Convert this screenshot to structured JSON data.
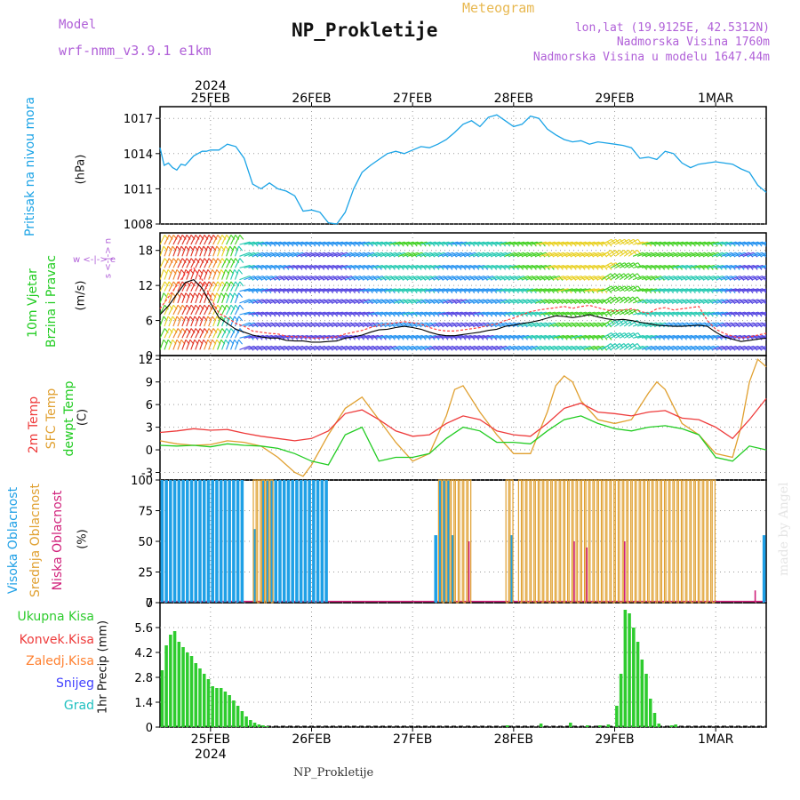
{
  "header": {
    "model_label": "Model",
    "model_name": "wrf-nmm_v3.9.1  e1km",
    "title": "NP_Prokletije",
    "meteogram": "Meteogram",
    "lonlat": "lon,lat (19.9125E, 42.5312N)",
    "elevation": "Nadmorska Visina 1760m",
    "model_elevation": "Nadmorska Visina u modelu 1647.44m"
  },
  "footer": {
    "station": "NP_Prokletije",
    "credit": "made by Angel"
  },
  "time_axis": {
    "year": "2024",
    "labels": [
      "25FEB",
      "26FEB",
      "27FEB",
      "28FEB",
      "29FEB",
      "1MAR"
    ],
    "label_hours": [
      12,
      36,
      60,
      84,
      108,
      132
    ],
    "hour_range": [
      0,
      144
    ]
  },
  "colors": {
    "pressure": "#1aa3e6",
    "wind": "#00b050",
    "wind_speed": "#000000",
    "wind_gust": "#ff4040",
    "t2m": "#ee3b3b",
    "sfc": "#e0a030",
    "dew": "#22cc22",
    "high_cloud": "#1fa0e6",
    "mid_cloud": "#e0a030",
    "low_cloud": "#d0207a",
    "total_precip": "#2ecc2e",
    "conv_precip": "#ee3b3b",
    "frz_precip": "#ff8030",
    "snow": "#4040ff",
    "hail": "#20c0c0"
  },
  "chart_data": [
    {
      "type": "line",
      "id": "pressure",
      "ylabel_main": "Pritisak na nivou mora",
      "ylabel_unit": "(hPa)",
      "yticks": [
        1008,
        1011,
        1014,
        1017
      ],
      "ylim": [
        1008,
        1018
      ],
      "grid": true,
      "series": [
        {
          "x": [
            0,
            1,
            2,
            3,
            4,
            5,
            6,
            7,
            8,
            9,
            10,
            11,
            12,
            14,
            16,
            18,
            20,
            22,
            24,
            26,
            28,
            30,
            32,
            34,
            36,
            38,
            40,
            42,
            44,
            46,
            48,
            50,
            52,
            54,
            56,
            58,
            60,
            62,
            64,
            66,
            68,
            70,
            72,
            74,
            76,
            78,
            80,
            82,
            84,
            86,
            88,
            90,
            92,
            94,
            96,
            98,
            100,
            102,
            104,
            106,
            108,
            110,
            112,
            114,
            116,
            118,
            120,
            122,
            124,
            126,
            128,
            130,
            132,
            134,
            136,
            138,
            140,
            142,
            144
          ],
          "y": [
            1014.5,
            1013.0,
            1013.2,
            1012.8,
            1012.6,
            1013.1,
            1013.0,
            1013.4,
            1013.8,
            1014.0,
            1014.2,
            1014.2,
            1014.3,
            1014.3,
            1014.8,
            1014.6,
            1013.6,
            1011.4,
            1011.0,
            1011.5,
            1011.0,
            1010.8,
            1010.4,
            1009.1,
            1009.2,
            1009.0,
            1008.1,
            1008.0,
            1009.0,
            1011.0,
            1012.4,
            1013.0,
            1013.5,
            1014.0,
            1014.2,
            1014.0,
            1014.3,
            1014.6,
            1014.5,
            1014.8,
            1015.2,
            1015.8,
            1016.5,
            1016.8,
            1016.3,
            1017.1,
            1017.3,
            1016.8,
            1016.3,
            1016.5,
            1017.2,
            1017.0,
            1016.1,
            1015.6,
            1015.2,
            1015.0,
            1015.1,
            1014.8,
            1015.0,
            1014.9,
            1014.8,
            1014.7,
            1014.5,
            1013.6,
            1013.7,
            1013.5,
            1014.2,
            1014.0,
            1013.2,
            1012.8,
            1013.1,
            1013.2,
            1013.3,
            1013.2,
            1013.1,
            1012.7,
            1012.4,
            1011.3,
            1010.7
          ]
        }
      ]
    },
    {
      "type": "line",
      "id": "wind",
      "ylabel_main": "10m Vjetar",
      "ylabel_sub": "Brzina i Pravac",
      "ylabel_unit": "(m/s)",
      "compass": "w  <-|->  e",
      "compass_v": "s <-|-> n",
      "yticks": [
        0,
        6,
        12,
        18
      ],
      "ylim": [
        0,
        21
      ],
      "grid": true,
      "series": [
        {
          "name": "speed",
          "x": [
            0,
            2,
            4,
            6,
            8,
            10,
            12,
            14,
            16,
            18,
            20,
            22,
            24,
            26,
            28,
            30,
            32,
            34,
            36,
            38,
            40,
            42,
            44,
            46,
            48,
            50,
            52,
            54,
            56,
            58,
            60,
            62,
            64,
            66,
            68,
            70,
            72,
            74,
            76,
            78,
            80,
            82,
            84,
            86,
            88,
            90,
            92,
            94,
            96,
            98,
            100,
            102,
            104,
            106,
            108,
            110,
            112,
            114,
            116,
            118,
            120,
            122,
            124,
            126,
            128,
            130,
            132,
            134,
            136,
            138,
            140,
            142,
            144
          ],
          "y": [
            7,
            8.5,
            10.5,
            12.5,
            13.0,
            11.5,
            9,
            6.5,
            5.5,
            4.5,
            4.0,
            3.5,
            3.2,
            3.0,
            3.0,
            2.6,
            2.5,
            2.5,
            2.3,
            2.3,
            2.4,
            2.5,
            3.0,
            3.2,
            3.5,
            4.0,
            4.4,
            4.5,
            4.8,
            5.0,
            4.8,
            4.5,
            4.0,
            3.6,
            3.4,
            3.4,
            3.6,
            3.8,
            4.0,
            4.3,
            4.5,
            5.0,
            5.2,
            5.5,
            5.7,
            6.0,
            6.4,
            6.8,
            6.7,
            6.5,
            6.7,
            7.0,
            6.6,
            6.3,
            6.1,
            6.2,
            6.0,
            5.7,
            5.5,
            5.2,
            5.1,
            5.0,
            5.0,
            5.1,
            5.2,
            5.0,
            4.0,
            3.2,
            2.8,
            2.4,
            2.6,
            2.8,
            3.0
          ]
        },
        {
          "name": "gust",
          "x": [
            0,
            2,
            4,
            6,
            8,
            10,
            12,
            14,
            16,
            18,
            20,
            22,
            24,
            26,
            28,
            30,
            32,
            34,
            36,
            38,
            40,
            42,
            44,
            46,
            48,
            50,
            52,
            54,
            56,
            58,
            60,
            62,
            64,
            66,
            68,
            70,
            72,
            74,
            76,
            78,
            80,
            82,
            84,
            86,
            88,
            90,
            92,
            94,
            96,
            98,
            100,
            102,
            104,
            106,
            108,
            110,
            112,
            114,
            116,
            118,
            120,
            122,
            124,
            126,
            128,
            130,
            132,
            134,
            136,
            138,
            140,
            142,
            144
          ],
          "y": [
            8,
            10,
            12,
            14,
            15,
            13,
            10,
            7.2,
            6.5,
            5.5,
            5.0,
            4.2,
            4.0,
            3.8,
            3.7,
            3.3,
            3.2,
            3.2,
            3.0,
            3.0,
            3.1,
            3.2,
            3.7,
            4.0,
            4.3,
            4.8,
            5.2,
            5.4,
            5.6,
            5.8,
            5.6,
            5.4,
            4.8,
            4.4,
            4.2,
            4.2,
            4.4,
            4.6,
            4.8,
            5.2,
            5.4,
            6.0,
            6.4,
            7.0,
            7.5,
            7.8,
            8.0,
            8.2,
            8.4,
            8.1,
            8.4,
            8.6,
            8.2,
            7.8,
            7.6,
            7.8,
            8.0,
            7.6,
            7.2,
            8.0,
            8.2,
            7.8,
            8.0,
            8.2,
            8.4,
            6.0,
            4.5,
            3.8,
            3.3,
            3.0,
            3.2,
            3.5,
            3.8
          ]
        }
      ]
    },
    {
      "type": "line",
      "id": "temperature",
      "ylabel_t2m": "2m Temp",
      "ylabel_sfc": "SFC Temp",
      "ylabel_dew": "dewpt Temp",
      "ylabel_unit": "(C)",
      "yticks": [
        -3,
        0,
        3,
        6,
        9,
        12
      ],
      "ylim": [
        -4,
        12.5
      ],
      "grid": true,
      "series": [
        {
          "name": "t2m",
          "x": [
            0,
            4,
            8,
            12,
            16,
            20,
            24,
            28,
            32,
            36,
            40,
            44,
            48,
            52,
            56,
            60,
            64,
            68,
            72,
            76,
            80,
            84,
            88,
            92,
            96,
            100,
            104,
            108,
            112,
            116,
            120,
            124,
            128,
            132,
            136,
            140,
            144
          ],
          "y": [
            2.3,
            2.5,
            2.8,
            2.6,
            2.7,
            2.2,
            1.8,
            1.5,
            1.2,
            1.5,
            2.5,
            4.8,
            5.3,
            4.0,
            2.5,
            1.8,
            2.0,
            3.5,
            4.5,
            4.0,
            2.5,
            2.0,
            1.8,
            3.5,
            5.5,
            6.2,
            5.0,
            4.8,
            4.5,
            5.0,
            5.2,
            4.2,
            4.0,
            3.0,
            1.5,
            4.0,
            6.8
          ]
        },
        {
          "name": "sfc",
          "x": [
            0,
            4,
            8,
            12,
            16,
            20,
            24,
            28,
            32,
            34,
            36,
            40,
            44,
            48,
            52,
            56,
            60,
            64,
            68,
            70,
            72,
            76,
            80,
            84,
            88,
            92,
            94,
            96,
            98,
            100,
            104,
            108,
            112,
            116,
            118,
            120,
            124,
            128,
            132,
            136,
            138,
            140,
            142,
            144
          ],
          "y": [
            1.2,
            0.8,
            0.6,
            0.7,
            1.2,
            1.0,
            0.5,
            -1.0,
            -3.0,
            -3.5,
            -2.0,
            2.0,
            5.5,
            7.0,
            4.0,
            1.0,
            -1.5,
            -0.5,
            4.5,
            8.0,
            8.5,
            5.0,
            2.0,
            -0.5,
            -0.5,
            5.0,
            8.5,
            9.8,
            9.0,
            6.5,
            4.0,
            3.5,
            4.0,
            7.5,
            9.0,
            8.0,
            3.5,
            2.0,
            -0.5,
            -1.0,
            3.0,
            9.0,
            12.0,
            11.0
          ]
        },
        {
          "name": "dew",
          "x": [
            0,
            4,
            8,
            12,
            16,
            20,
            24,
            28,
            32,
            36,
            40,
            44,
            48,
            52,
            56,
            60,
            64,
            68,
            72,
            76,
            80,
            84,
            88,
            92,
            96,
            100,
            104,
            108,
            112,
            116,
            120,
            124,
            128,
            132,
            136,
            140,
            144
          ],
          "y": [
            0.6,
            0.5,
            0.6,
            0.4,
            0.8,
            0.6,
            0.5,
            0.2,
            -0.5,
            -1.5,
            -2.0,
            2.0,
            3.0,
            -1.5,
            -1.0,
            -1.0,
            -0.5,
            1.5,
            3.0,
            2.5,
            1.0,
            1.0,
            0.8,
            2.5,
            4.0,
            4.5,
            3.5,
            2.8,
            2.5,
            3.0,
            3.2,
            2.8,
            2.0,
            -1.0,
            -1.5,
            0.5,
            0.0
          ]
        }
      ]
    },
    {
      "type": "bar",
      "id": "clouds",
      "ylabel_high": "Visoka Oblacnost",
      "ylabel_mid": "Srednja Oblacnost",
      "ylabel_low": "Niska Oblacnost",
      "ylabel_unit": "(%)",
      "yticks": [
        0,
        25,
        50,
        75,
        100
      ],
      "ylim": [
        0,
        100
      ],
      "grid": true,
      "high_segments": [
        [
          0,
          2,
          100
        ],
        [
          2,
          20,
          100
        ],
        [
          22,
          23,
          60
        ],
        [
          24,
          40,
          100
        ],
        [
          65,
          66,
          55
        ],
        [
          66,
          69,
          100
        ],
        [
          69,
          70,
          55
        ],
        [
          83,
          84,
          55
        ],
        [
          143,
          144,
          55
        ]
      ],
      "mid_segments": [
        [
          22,
          27,
          100
        ],
        [
          66,
          74,
          100
        ],
        [
          82,
          84,
          100
        ],
        [
          85,
          132,
          100
        ]
      ],
      "low_segments": [
        [
          73,
          74,
          50
        ],
        [
          98,
          99,
          50
        ],
        [
          101,
          102,
          45
        ],
        [
          110,
          111,
          50
        ],
        [
          141,
          142,
          10
        ]
      ]
    },
    {
      "type": "bar",
      "id": "precip",
      "ylabel_unit": "1hr Precip (mm)",
      "legend": [
        "Ukupna Kisa",
        "Konvek.Kisa",
        "Zaledj.Kisa",
        "Snijeg",
        "Grad"
      ],
      "yticks": [
        0,
        1.4,
        2.8,
        4.2,
        5.6,
        7
      ],
      "ylim": [
        0,
        7
      ],
      "grid": true,
      "x": [
        0,
        1,
        2,
        3,
        4,
        5,
        6,
        7,
        8,
        9,
        10,
        11,
        12,
        13,
        14,
        15,
        16,
        17,
        18,
        19,
        20,
        21,
        22,
        23,
        24,
        25,
        82,
        90,
        97,
        101,
        104,
        106,
        108,
        109,
        110,
        111,
        112,
        113,
        114,
        115,
        116,
        117,
        118,
        121,
        122
      ],
      "y": [
        3.2,
        4.6,
        5.2,
        5.4,
        4.8,
        4.5,
        4.2,
        4.0,
        3.6,
        3.3,
        3.0,
        2.7,
        2.3,
        2.2,
        2.2,
        2.0,
        1.8,
        1.5,
        1.2,
        0.9,
        0.6,
        0.4,
        0.25,
        0.15,
        0.1,
        0.05,
        0.1,
        0.2,
        0.25,
        0.1,
        0.1,
        0.15,
        1.2,
        3.0,
        6.6,
        6.4,
        5.6,
        4.8,
        3.8,
        3.0,
        1.6,
        0.8,
        0.2,
        0.1,
        0.15
      ]
    }
  ]
}
